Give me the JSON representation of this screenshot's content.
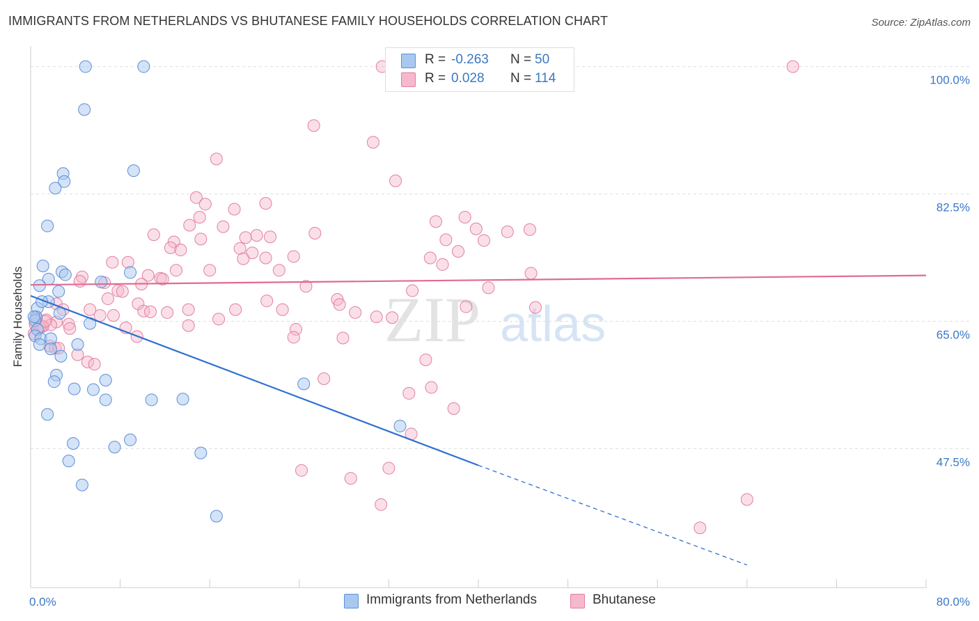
{
  "title": "IMMIGRANTS FROM NETHERLANDS VS BHUTANESE FAMILY HOUSEHOLDS CORRELATION CHART",
  "source": "Source: ZipAtlas.com",
  "watermark": {
    "part1": "ZIP",
    "part2": "atlas"
  },
  "colors": {
    "blue_fill": "#a9c8f0",
    "blue_stroke": "#5b8fd6",
    "blue_line": "#2d6fd1",
    "pink_fill": "#f6b8cc",
    "pink_stroke": "#e0809f",
    "pink_line": "#e06a93",
    "grid": "#dddddd",
    "axis_text": "#3b78c4"
  },
  "legend_top": [
    {
      "r_label": "R =",
      "r_value": "-0.263",
      "n_label": "N =",
      "n_value": "50",
      "color": "#a9c8f0",
      "border": "#5b8fd6"
    },
    {
      "r_label": "R =",
      "r_value": "0.028",
      "n_label": "N =",
      "n_value": "114",
      "color": "#f6b8cc",
      "border": "#e0809f"
    }
  ],
  "legend_bottom": [
    {
      "label": "Immigrants from Netherlands",
      "color": "#a9c8f0",
      "border": "#5b8fd6"
    },
    {
      "label": "Bhutanese",
      "color": "#f6b8cc",
      "border": "#e0809f"
    }
  ],
  "chart_data": {
    "type": "scatter",
    "title": "IMMIGRANTS FROM NETHERLANDS VS BHUTANESE FAMILY HOUSEHOLDS CORRELATION CHART",
    "xlabel": "",
    "ylabel": "Family Households",
    "xlim": [
      0,
      80
    ],
    "ylim": [
      30.5,
      101.5
    ],
    "x_tick_labels": [
      "0.0%",
      "80.0%"
    ],
    "y_ticks": [
      47.5,
      65.0,
      82.5,
      100.0
    ],
    "y_tick_labels": [
      "47.5%",
      "65.0%",
      "82.5%",
      "100.0%"
    ],
    "grid": true,
    "legend_position": "top-center",
    "series": [
      {
        "name": "Immigrants from Netherlands",
        "color": "#a9c8f0",
        "trend": {
          "x": [
            0,
            40
          ],
          "y": [
            68.5,
            45.2
          ],
          "dashed_to": [
            64,
            31.5
          ]
        },
        "points": [
          [
            4.9,
            100.0
          ],
          [
            10.1,
            100.0
          ],
          [
            4.8,
            94.1
          ],
          [
            2.9,
            85.3
          ],
          [
            9.2,
            85.7
          ],
          [
            3.0,
            84.2
          ],
          [
            2.2,
            83.3
          ],
          [
            1.5,
            78.1
          ],
          [
            1.1,
            72.6
          ],
          [
            2.8,
            71.8
          ],
          [
            8.9,
            71.7
          ],
          [
            1.6,
            70.8
          ],
          [
            3.1,
            71.4
          ],
          [
            6.3,
            70.4
          ],
          [
            0.8,
            69.9
          ],
          [
            2.5,
            69.1
          ],
          [
            1.6,
            67.7
          ],
          [
            0.6,
            66.8
          ],
          [
            1.0,
            67.7
          ],
          [
            2.6,
            66.1
          ],
          [
            0.5,
            65.6
          ],
          [
            0.4,
            65.1
          ],
          [
            0.6,
            63.9
          ],
          [
            5.3,
            64.7
          ],
          [
            0.4,
            63.0
          ],
          [
            0.9,
            62.6
          ],
          [
            1.8,
            62.6
          ],
          [
            0.8,
            61.8
          ],
          [
            4.2,
            61.8
          ],
          [
            1.8,
            61.2
          ],
          [
            2.7,
            60.2
          ],
          [
            2.3,
            57.6
          ],
          [
            2.1,
            56.7
          ],
          [
            6.7,
            56.9
          ],
          [
            3.9,
            55.7
          ],
          [
            5.6,
            55.6
          ],
          [
            24.4,
            56.4
          ],
          [
            6.7,
            54.2
          ],
          [
            10.8,
            54.2
          ],
          [
            13.6,
            54.3
          ],
          [
            1.5,
            52.2
          ],
          [
            33.0,
            50.6
          ],
          [
            8.9,
            48.7
          ],
          [
            3.8,
            48.2
          ],
          [
            7.5,
            47.7
          ],
          [
            15.2,
            46.9
          ],
          [
            3.4,
            45.8
          ],
          [
            4.6,
            42.5
          ],
          [
            16.6,
            38.2
          ],
          [
            0.3,
            65.6
          ]
        ]
      },
      {
        "name": "Bhutanese",
        "color": "#f6b8cc",
        "trend": {
          "x": [
            0,
            80
          ],
          "y": [
            70.0,
            71.3
          ]
        },
        "points": [
          [
            31.4,
            100.0
          ],
          [
            42.7,
            100.0
          ],
          [
            68.1,
            100.0
          ],
          [
            25.3,
            91.9
          ],
          [
            30.6,
            89.6
          ],
          [
            16.6,
            87.3
          ],
          [
            32.6,
            84.3
          ],
          [
            14.8,
            82.0
          ],
          [
            15.6,
            81.1
          ],
          [
            21.0,
            81.2
          ],
          [
            18.2,
            80.4
          ],
          [
            38.8,
            79.3
          ],
          [
            15.1,
            79.3
          ],
          [
            36.2,
            78.7
          ],
          [
            14.2,
            78.2
          ],
          [
            17.2,
            78.0
          ],
          [
            39.8,
            77.7
          ],
          [
            42.6,
            77.3
          ],
          [
            11.0,
            76.9
          ],
          [
            25.4,
            77.1
          ],
          [
            19.2,
            76.5
          ],
          [
            44.6,
            77.6
          ],
          [
            21.4,
            76.6
          ],
          [
            15.2,
            76.3
          ],
          [
            20.2,
            76.8
          ],
          [
            37.1,
            76.2
          ],
          [
            40.5,
            76.1
          ],
          [
            12.8,
            75.9
          ],
          [
            12.5,
            75.1
          ],
          [
            13.4,
            74.8
          ],
          [
            18.7,
            75.0
          ],
          [
            19.8,
            74.4
          ],
          [
            35.7,
            73.7
          ],
          [
            38.2,
            74.6
          ],
          [
            7.3,
            73.1
          ],
          [
            8.7,
            73.1
          ],
          [
            19.0,
            73.6
          ],
          [
            21.0,
            73.7
          ],
          [
            23.5,
            73.9
          ],
          [
            36.8,
            72.8
          ],
          [
            13.0,
            72.0
          ],
          [
            16.0,
            72.0
          ],
          [
            22.2,
            72.0
          ],
          [
            44.7,
            71.6
          ],
          [
            10.5,
            71.3
          ],
          [
            4.6,
            71.1
          ],
          [
            11.6,
            70.9
          ],
          [
            4.4,
            70.5
          ],
          [
            6.6,
            70.3
          ],
          [
            9.9,
            70.1
          ],
          [
            11.8,
            70.8
          ],
          [
            24.6,
            69.8
          ],
          [
            7.8,
            69.2
          ],
          [
            8.2,
            69.1
          ],
          [
            34.1,
            69.2
          ],
          [
            40.9,
            69.6
          ],
          [
            2.3,
            67.4
          ],
          [
            2.9,
            66.6
          ],
          [
            6.9,
            68.1
          ],
          [
            9.6,
            67.4
          ],
          [
            21.1,
            67.8
          ],
          [
            27.4,
            68.0
          ],
          [
            27.6,
            67.3
          ],
          [
            38.9,
            67.0
          ],
          [
            45.1,
            66.9
          ],
          [
            5.3,
            66.6
          ],
          [
            10.1,
            66.4
          ],
          [
            10.7,
            66.3
          ],
          [
            12.2,
            66.2
          ],
          [
            14.1,
            66.6
          ],
          [
            18.3,
            66.6
          ],
          [
            22.5,
            66.6
          ],
          [
            29.0,
            66.2
          ],
          [
            30.9,
            65.6
          ],
          [
            32.3,
            65.5
          ],
          [
            6.2,
            65.8
          ],
          [
            7.4,
            65.8
          ],
          [
            16.8,
            65.3
          ],
          [
            1.4,
            65.2
          ],
          [
            2.3,
            64.9
          ],
          [
            1.8,
            64.5
          ],
          [
            3.4,
            64.6
          ],
          [
            0.4,
            64.6
          ],
          [
            1.0,
            64.3
          ],
          [
            0.6,
            63.8
          ],
          [
            1.1,
            64.3
          ],
          [
            8.5,
            64.1
          ],
          [
            14.1,
            64.4
          ],
          [
            23.7,
            63.9
          ],
          [
            3.5,
            64.0
          ],
          [
            23.5,
            62.8
          ],
          [
            9.5,
            62.9
          ],
          [
            27.9,
            62.7
          ],
          [
            1.7,
            61.6
          ],
          [
            2.2,
            61.3
          ],
          [
            2.5,
            61.3
          ],
          [
            4.2,
            60.4
          ],
          [
            5.1,
            59.4
          ],
          [
            5.7,
            59.1
          ],
          [
            35.3,
            59.7
          ],
          [
            26.2,
            57.1
          ],
          [
            35.8,
            55.9
          ],
          [
            33.8,
            55.1
          ],
          [
            37.8,
            53.0
          ],
          [
            34.0,
            49.5
          ],
          [
            24.2,
            44.5
          ],
          [
            28.6,
            43.4
          ],
          [
            32.0,
            44.8
          ],
          [
            31.3,
            39.8
          ],
          [
            64.0,
            40.5
          ],
          [
            59.8,
            36.6
          ],
          [
            0.3,
            63.3
          ],
          [
            0.8,
            64.2
          ],
          [
            1.3,
            65.0
          ],
          [
            0.5,
            65.4
          ]
        ]
      }
    ]
  }
}
